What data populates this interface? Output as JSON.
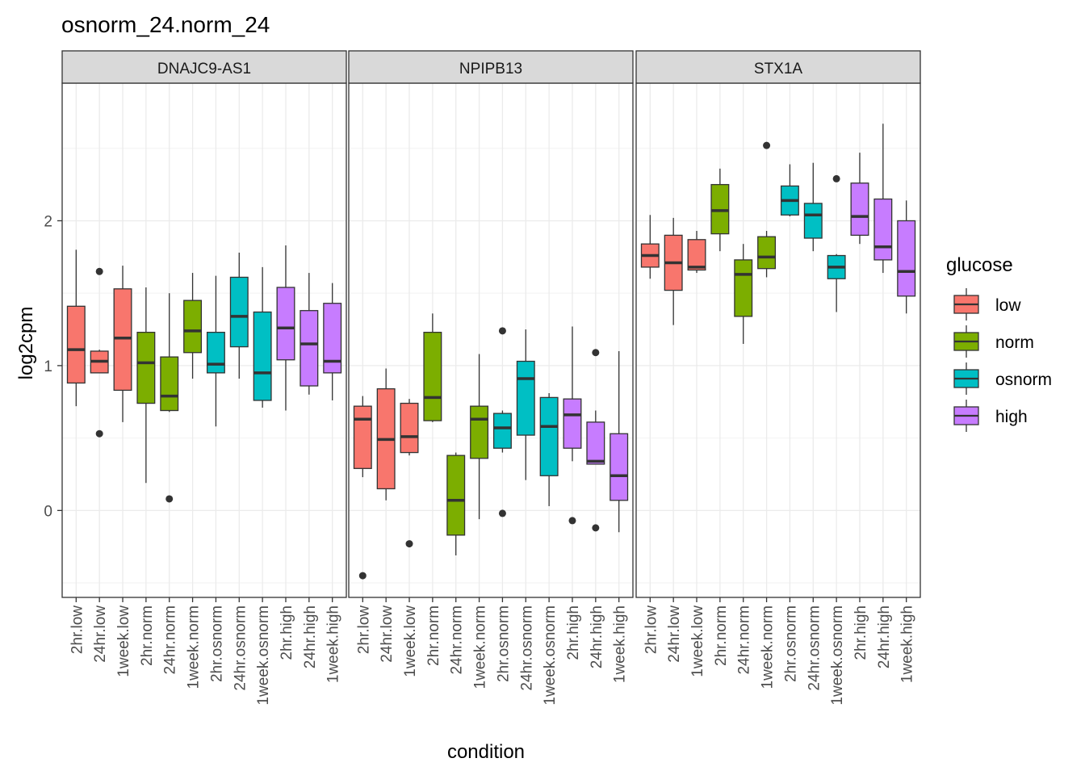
{
  "chart_data": {
    "type": "boxplot",
    "title": "osnorm_24.norm_24",
    "xlabel": "condition",
    "ylabel": "log2cpm",
    "ylim": [
      -0.6,
      2.95
    ],
    "yticks": [
      0,
      1,
      2
    ],
    "grid": true,
    "legend_position": "right",
    "legend": {
      "title": "glucose",
      "entries": [
        {
          "label": "low",
          "color": "#F8766D"
        },
        {
          "label": "norm",
          "color": "#7CAE00"
        },
        {
          "label": "osnorm",
          "color": "#00BFC4"
        },
        {
          "label": "high",
          "color": "#C77CFF"
        }
      ]
    },
    "categories": [
      "2hr.low",
      "24hr.low",
      "1week.low",
      "2hr.norm",
      "24hr.norm",
      "1week.norm",
      "2hr.osnorm",
      "24hr.osnorm",
      "1week.osnorm",
      "2hr.high",
      "24hr.high",
      "1week.high"
    ],
    "category_group": [
      "low",
      "low",
      "low",
      "norm",
      "norm",
      "norm",
      "osnorm",
      "osnorm",
      "osnorm",
      "high",
      "high",
      "high"
    ],
    "panels": [
      {
        "name": "DNAJC9-AS1",
        "boxes": [
          {
            "min": 0.72,
            "q1": 0.88,
            "median": 1.11,
            "q3": 1.41,
            "max": 1.8,
            "outliers": []
          },
          {
            "min": 0.95,
            "q1": 0.95,
            "median": 1.03,
            "q3": 1.1,
            "max": 1.11,
            "outliers": [
              1.65,
              0.53
            ]
          },
          {
            "min": 0.61,
            "q1": 0.83,
            "median": 1.19,
            "q3": 1.53,
            "max": 1.69,
            "outliers": []
          },
          {
            "min": 0.19,
            "q1": 0.74,
            "median": 1.02,
            "q3": 1.23,
            "max": 1.54,
            "outliers": []
          },
          {
            "min": 0.68,
            "q1": 0.69,
            "median": 0.79,
            "q3": 1.06,
            "max": 1.5,
            "outliers": [
              0.08
            ]
          },
          {
            "min": 0.91,
            "q1": 1.09,
            "median": 1.24,
            "q3": 1.45,
            "max": 1.64,
            "outliers": []
          },
          {
            "min": 0.58,
            "q1": 0.95,
            "median": 1.01,
            "q3": 1.23,
            "max": 1.62,
            "outliers": []
          },
          {
            "min": 0.91,
            "q1": 1.13,
            "median": 1.34,
            "q3": 1.61,
            "max": 1.78,
            "outliers": []
          },
          {
            "min": 0.71,
            "q1": 0.76,
            "median": 0.95,
            "q3": 1.37,
            "max": 1.68,
            "outliers": []
          },
          {
            "min": 0.69,
            "q1": 1.04,
            "median": 1.26,
            "q3": 1.54,
            "max": 1.83,
            "outliers": []
          },
          {
            "min": 0.8,
            "q1": 0.86,
            "median": 1.15,
            "q3": 1.38,
            "max": 1.64,
            "outliers": []
          },
          {
            "min": 0.76,
            "q1": 0.95,
            "median": 1.03,
            "q3": 1.43,
            "max": 1.57,
            "outliers": []
          }
        ]
      },
      {
        "name": "NPIPB13",
        "boxes": [
          {
            "min": 0.23,
            "q1": 0.29,
            "median": 0.63,
            "q3": 0.72,
            "max": 0.79,
            "outliers": [
              -0.45
            ]
          },
          {
            "min": 0.07,
            "q1": 0.15,
            "median": 0.49,
            "q3": 0.84,
            "max": 0.98,
            "outliers": []
          },
          {
            "min": 0.38,
            "q1": 0.4,
            "median": 0.51,
            "q3": 0.74,
            "max": 0.77,
            "outliers": [
              -0.23
            ]
          },
          {
            "min": 0.61,
            "q1": 0.62,
            "median": 0.78,
            "q3": 1.23,
            "max": 1.36,
            "outliers": []
          },
          {
            "min": -0.31,
            "q1": -0.17,
            "median": 0.07,
            "q3": 0.38,
            "max": 0.4,
            "outliers": []
          },
          {
            "min": -0.06,
            "q1": 0.36,
            "median": 0.63,
            "q3": 0.72,
            "max": 1.08,
            "outliers": []
          },
          {
            "min": 0.4,
            "q1": 0.43,
            "median": 0.57,
            "q3": 0.67,
            "max": 0.69,
            "outliers": [
              1.24,
              -0.02
            ]
          },
          {
            "min": 0.21,
            "q1": 0.52,
            "median": 0.91,
            "q3": 1.03,
            "max": 1.25,
            "outliers": []
          },
          {
            "min": 0.03,
            "q1": 0.24,
            "median": 0.58,
            "q3": 0.78,
            "max": 0.81,
            "outliers": []
          },
          {
            "min": 0.34,
            "q1": 0.43,
            "median": 0.66,
            "q3": 0.77,
            "max": 1.27,
            "outliers": [
              -0.07
            ]
          },
          {
            "min": 0.32,
            "q1": 0.32,
            "median": 0.34,
            "q3": 0.61,
            "max": 0.69,
            "outliers": [
              1.09,
              -0.12
            ]
          },
          {
            "min": -0.15,
            "q1": 0.07,
            "median": 0.24,
            "q3": 0.53,
            "max": 1.1,
            "outliers": []
          }
        ]
      },
      {
        "name": "STX1A",
        "boxes": [
          {
            "min": 1.6,
            "q1": 1.68,
            "median": 1.76,
            "q3": 1.84,
            "max": 2.04,
            "outliers": []
          },
          {
            "min": 1.28,
            "q1": 1.52,
            "median": 1.71,
            "q3": 1.9,
            "max": 2.02,
            "outliers": []
          },
          {
            "min": 1.64,
            "q1": 1.66,
            "median": 1.68,
            "q3": 1.87,
            "max": 1.93,
            "outliers": []
          },
          {
            "min": 1.79,
            "q1": 1.91,
            "median": 2.07,
            "q3": 2.25,
            "max": 2.36,
            "outliers": []
          },
          {
            "min": 1.15,
            "q1": 1.34,
            "median": 1.63,
            "q3": 1.73,
            "max": 1.84,
            "outliers": []
          },
          {
            "min": 1.61,
            "q1": 1.67,
            "median": 1.75,
            "q3": 1.89,
            "max": 1.93,
            "outliers": [
              2.52
            ]
          },
          {
            "min": 2.03,
            "q1": 2.04,
            "median": 2.14,
            "q3": 2.24,
            "max": 2.39,
            "outliers": []
          },
          {
            "min": 1.79,
            "q1": 1.88,
            "median": 2.04,
            "q3": 2.12,
            "max": 2.4,
            "outliers": []
          },
          {
            "min": 1.37,
            "q1": 1.6,
            "median": 1.68,
            "q3": 1.76,
            "max": 1.77,
            "outliers": [
              2.29
            ]
          },
          {
            "min": 1.84,
            "q1": 1.9,
            "median": 2.03,
            "q3": 2.26,
            "max": 2.47,
            "outliers": []
          },
          {
            "min": 1.64,
            "q1": 1.73,
            "median": 1.82,
            "q3": 2.15,
            "max": 2.67,
            "outliers": []
          },
          {
            "min": 1.36,
            "q1": 1.48,
            "median": 1.65,
            "q3": 2.0,
            "max": 2.14,
            "outliers": []
          }
        ]
      }
    ]
  }
}
